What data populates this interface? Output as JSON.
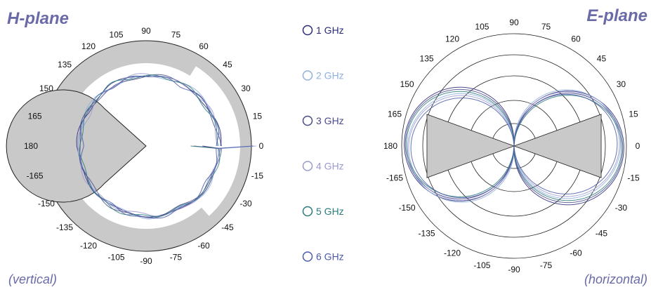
{
  "colors": {
    "label": "#6a6aa8",
    "shade": "#c9c9c9",
    "outline": "#222222"
  },
  "chart_data": [
    {
      "type": "polar",
      "title": "H-plane",
      "subtitle": "(vertical)",
      "angle_labels": [
        "90",
        "75",
        "60",
        "45",
        "30",
        "15",
        "0",
        "-15",
        "-30",
        "-45",
        "-60",
        "-75",
        "-90",
        "-105",
        "-120",
        "-135",
        "-150",
        "-165",
        "180",
        "165",
        "150",
        "135",
        "120",
        "105"
      ],
      "series": [
        {
          "name": "1 GHz",
          "angles_deg": [
            0,
            30,
            60,
            90,
            120,
            150,
            180,
            210,
            240,
            270,
            300,
            330
          ],
          "gain_norm": [
            0.98,
            0.96,
            0.95,
            0.97,
            0.98,
            0.95,
            0.99,
            0.96,
            0.97,
            0.95,
            0.97,
            0.96
          ]
        },
        {
          "name": "2 GHz",
          "angles_deg": [
            0,
            30,
            60,
            90,
            120,
            150,
            180,
            210,
            240,
            270,
            300,
            330
          ],
          "gain_norm": [
            0.95,
            0.99,
            0.97,
            0.94,
            0.96,
            0.99,
            0.95,
            0.97,
            0.94,
            0.98,
            0.95,
            0.99
          ]
        },
        {
          "name": "3 GHz",
          "angles_deg": [
            0,
            30,
            60,
            90,
            120,
            150,
            180,
            210,
            240,
            270,
            300,
            330
          ],
          "gain_norm": [
            0.97,
            0.94,
            0.98,
            0.96,
            0.93,
            0.97,
            0.96,
            0.94,
            0.98,
            0.97,
            0.93,
            0.96
          ]
        },
        {
          "name": "4 GHz",
          "angles_deg": [
            0,
            30,
            60,
            90,
            120,
            150,
            180,
            210,
            240,
            270,
            300,
            330
          ],
          "gain_norm": [
            0.93,
            0.97,
            0.95,
            0.99,
            0.96,
            0.92,
            0.97,
            0.98,
            0.95,
            0.93,
            0.98,
            0.95
          ]
        },
        {
          "name": "5 GHz",
          "angles_deg": [
            0,
            30,
            60,
            90,
            120,
            150,
            180,
            210,
            240,
            270,
            300,
            330
          ],
          "gain_norm": [
            0.96,
            0.93,
            0.97,
            0.95,
            0.99,
            0.96,
            0.93,
            0.95,
            0.99,
            0.96,
            0.94,
            0.97
          ]
        },
        {
          "name": "6 GHz",
          "angles_deg": [
            0,
            30,
            60,
            90,
            120,
            150,
            180,
            210,
            240,
            270,
            300,
            330
          ],
          "gain_norm": [
            0.94,
            0.98,
            0.93,
            0.97,
            0.95,
            0.98,
            0.91,
            0.97,
            0.95,
            0.99,
            0.96,
            0.93
          ]
        }
      ]
    },
    {
      "type": "polar",
      "title": "E-plane",
      "subtitle": "(horizontal)",
      "angle_labels": [
        "90",
        "75",
        "60",
        "45",
        "30",
        "15",
        "0",
        "-15",
        "-30",
        "-45",
        "-60",
        "-75",
        "-90",
        "-105",
        "-120",
        "-135",
        "-150",
        "-165",
        "180",
        "165",
        "150",
        "135",
        "120",
        "105"
      ],
      "shaded_sector_half_width_deg": 20,
      "series": [
        {
          "name": "1 GHz",
          "pattern": "cos",
          "peak": 0.99
        },
        {
          "name": "2 GHz",
          "pattern": "cos",
          "peak": 0.96
        },
        {
          "name": "3 GHz",
          "pattern": "cos",
          "peak": 0.98
        },
        {
          "name": "4 GHz",
          "pattern": "cos",
          "peak": 0.95
        },
        {
          "name": "5 GHz",
          "pattern": "cos",
          "peak": 0.97
        },
        {
          "name": "6 GHz",
          "pattern": "cos",
          "peak": 0.93
        }
      ]
    }
  ],
  "legend": [
    {
      "label": "1 GHz",
      "color": "#2a2a7a"
    },
    {
      "label": "2 GHz",
      "color": "#8fb0dd"
    },
    {
      "label": "3 GHz",
      "color": "#4a4a8a"
    },
    {
      "label": "4 GHz",
      "color": "#9a9ad0"
    },
    {
      "label": "5 GHz",
      "color": "#2a7a7a"
    },
    {
      "label": "6 GHz",
      "color": "#4a5aa8"
    }
  ]
}
